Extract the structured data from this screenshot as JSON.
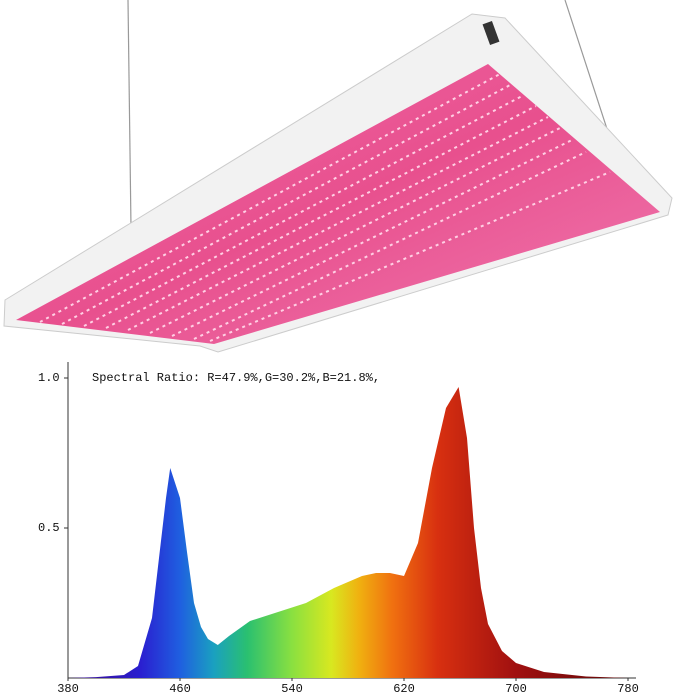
{
  "chart_data": {
    "type": "area",
    "annotation": "Spectral Ratio:  R=47.9%,G=30.2%,B=21.8%,",
    "x": [
      380,
      400,
      420,
      430,
      440,
      445,
      450,
      453,
      460,
      465,
      470,
      475,
      480,
      487,
      495,
      510,
      530,
      550,
      570,
      590,
      600,
      610,
      620,
      630,
      640,
      650,
      659,
      665,
      670,
      675,
      680,
      690,
      700,
      720,
      750,
      780
    ],
    "values": [
      0,
      0.003,
      0.01,
      0.04,
      0.2,
      0.4,
      0.6,
      0.7,
      0.6,
      0.42,
      0.25,
      0.17,
      0.13,
      0.11,
      0.14,
      0.19,
      0.22,
      0.25,
      0.3,
      0.34,
      0.35,
      0.35,
      0.34,
      0.45,
      0.7,
      0.9,
      0.97,
      0.8,
      0.5,
      0.3,
      0.18,
      0.09,
      0.05,
      0.02,
      0.005,
      0
    ],
    "xlim": [
      380,
      780
    ],
    "xticks": [
      380,
      460,
      540,
      620,
      700,
      780
    ],
    "ylim": [
      0,
      1
    ],
    "yticks": [
      0.5,
      {
        "value": 1,
        "label": "1.0"
      }
    ]
  }
}
